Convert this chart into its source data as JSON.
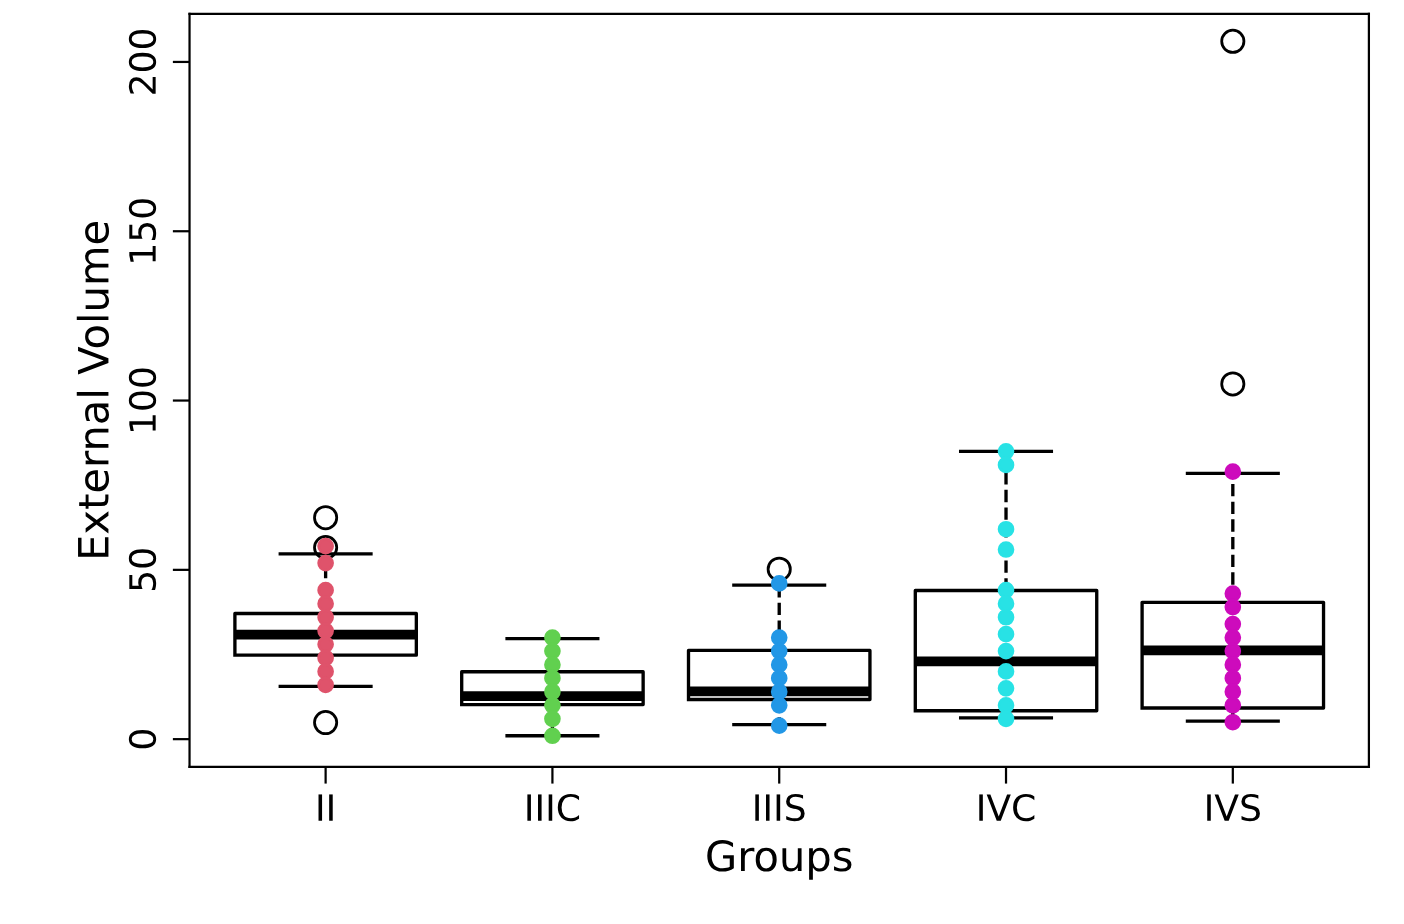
{
  "chart_data": {
    "type": "box",
    "xlabel": "Groups",
    "ylabel": "External Volume",
    "categories": [
      "II",
      "IIIC",
      "IIIS",
      "IVC",
      "IVS"
    ],
    "ylim": [
      -8.2,
      214.2
    ],
    "yticks": [
      0,
      50,
      100,
      150,
      200
    ],
    "grid": false,
    "boxes": [
      {
        "low": 15.6,
        "q1": 24.8,
        "median": 30.9,
        "q3": 37.1,
        "high": 54.7,
        "outliers": [
          65.4,
          56.6,
          4.9
        ]
      },
      {
        "low": 1.0,
        "q1": 10.2,
        "median": 12.7,
        "q3": 19.9,
        "high": 29.7
      },
      {
        "low": 4.3,
        "q1": 11.7,
        "median": 14.1,
        "q3": 26.2,
        "high": 45.5,
        "outliers": [
          50.2
        ]
      },
      {
        "low": 6.3,
        "q1": 8.4,
        "median": 23.0,
        "q3": 43.9,
        "high": 85.0
      },
      {
        "low": 5.3,
        "q1": 9.2,
        "median": 26.2,
        "q3": 40.4,
        "high": 78.5,
        "outliers": [
          104.9,
          206.1
        ]
      }
    ],
    "series": [
      {
        "type": "scatter",
        "marker": "circle",
        "color": "#df536b",
        "x": [
          "II",
          "II",
          "II",
          "II",
          "II",
          "II",
          "II",
          "II",
          "II",
          "II"
        ],
        "values": [
          57,
          52,
          44,
          40,
          36,
          32,
          28,
          24,
          20,
          16
        ]
      },
      {
        "type": "scatter",
        "marker": "circle",
        "color": "#61d04f",
        "x": [
          "IIIC",
          "IIIC",
          "IIIC",
          "IIIC",
          "IIIC",
          "IIIC",
          "IIIC",
          "IIIC"
        ],
        "values": [
          30,
          26,
          22,
          18,
          14,
          10,
          6,
          1
        ]
      },
      {
        "type": "scatter",
        "marker": "circle",
        "color": "#2297e6",
        "x": [
          "IIIS",
          "IIIS",
          "IIIS",
          "IIIS",
          "IIIS",
          "IIIS",
          "IIIS",
          "IIIS"
        ],
        "values": [
          46,
          30,
          26,
          22,
          18,
          14,
          10,
          4
        ]
      },
      {
        "type": "scatter",
        "marker": "circle",
        "color": "#28e2e5",
        "x": [
          "IVC",
          "IVC",
          "IVC",
          "IVC",
          "IVC",
          "IVC",
          "IVC",
          "IVC",
          "IVC",
          "IVC",
          "IVC",
          "IVC",
          "IVC"
        ],
        "values": [
          85,
          81,
          62,
          56,
          44,
          40,
          36,
          31,
          26,
          20,
          15,
          10,
          6
        ]
      },
      {
        "type": "scatter",
        "marker": "circle",
        "color": "#cd0bbc",
        "x": [
          "IVS",
          "IVS",
          "IVS",
          "IVS",
          "IVS",
          "IVS",
          "IVS",
          "IVS",
          "IVS",
          "IVS",
          "IVS"
        ],
        "values": [
          79,
          43,
          39,
          34,
          30,
          26,
          22,
          18,
          14,
          10,
          5
        ]
      }
    ]
  }
}
